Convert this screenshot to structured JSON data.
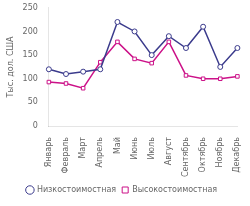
{
  "chart_data": {
    "type": "line",
    "categories": [
      "Январь",
      "Февраль",
      "Март",
      "Апрель",
      "Май",
      "Июнь",
      "Июль",
      "Август",
      "Сентябрь",
      "Октябрь",
      "Ноябрь",
      "Декабрь"
    ],
    "series": [
      {
        "name": "Низкостоимостная",
        "color": "#3b3b8c",
        "marker": "circle",
        "values": [
          120,
          110,
          115,
          120,
          220,
          200,
          150,
          190,
          165,
          210,
          125,
          165
        ]
      },
      {
        "name": "Высокостоимостная",
        "color": "#cc1188",
        "marker": "square",
        "values": [
          93,
          90,
          80,
          135,
          178,
          142,
          133,
          178,
          107,
          100,
          100,
          105
        ]
      }
    ],
    "ylabel": "Тыс. дол. США",
    "ylim": [
      0,
      250
    ],
    "yticks": [
      0,
      50,
      100,
      150,
      200,
      250
    ],
    "grid": false,
    "legend": "bottom"
  }
}
